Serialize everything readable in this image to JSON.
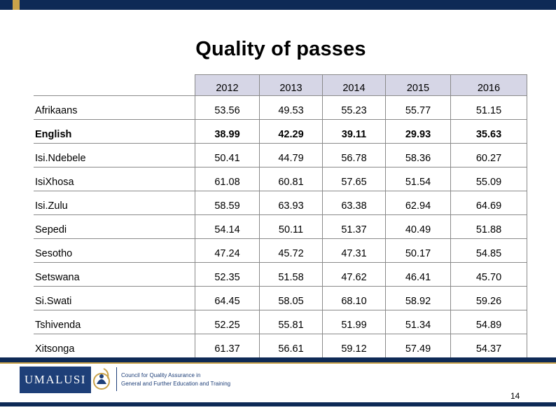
{
  "slide": {
    "title": "Quality of passes",
    "page_number": "14"
  },
  "table": {
    "columns": [
      "2012",
      "2013",
      "2014",
      "2015",
      "2016"
    ],
    "rows": [
      {
        "language": "Afrikaans",
        "values": [
          "53.56",
          "49.53",
          "55.23",
          "55.77",
          "51.15"
        ],
        "bold": false
      },
      {
        "language": "English",
        "values": [
          "38.99",
          "42.29",
          "39.11",
          "29.93",
          "35.63"
        ],
        "bold": true
      },
      {
        "language": "Isi.Ndebele",
        "values": [
          "50.41",
          "44.79",
          "56.78",
          "58.36",
          "60.27"
        ],
        "bold": false
      },
      {
        "language": "IsiXhosa",
        "values": [
          "61.08",
          "60.81",
          "57.65",
          "51.54",
          "55.09"
        ],
        "bold": false
      },
      {
        "language": "Isi.Zulu",
        "values": [
          "58.59",
          "63.93",
          "63.38",
          "62.94",
          "64.69"
        ],
        "bold": false
      },
      {
        "language": "Sepedi",
        "values": [
          "54.14",
          "50.11",
          "51.37",
          "40.49",
          "51.88"
        ],
        "bold": false
      },
      {
        "language": "Sesotho",
        "values": [
          "47.24",
          "45.72",
          "47.31",
          "50.17",
          "54.85"
        ],
        "bold": false
      },
      {
        "language": "Setswana",
        "values": [
          "52.35",
          "51.58",
          "47.62",
          "46.41",
          "45.70"
        ],
        "bold": false
      },
      {
        "language": "Si.Swati",
        "values": [
          "64.45",
          "58.05",
          "68.10",
          "58.92",
          "59.26"
        ],
        "bold": false
      },
      {
        "language": "Tshivenda",
        "values": [
          "52.25",
          "55.81",
          "51.99",
          "51.34",
          "54.89"
        ],
        "bold": false
      },
      {
        "language": "Xitsonga",
        "values": [
          "61.37",
          "56.61",
          "59.12",
          "57.49",
          "54.37"
        ],
        "bold": false
      }
    ]
  },
  "footer": {
    "logo_text": "UMALUSI",
    "org_line_1": "Council for Quality Assurance in",
    "org_line_2": "General and Further Education and Training",
    "emblem_icon": "umalusi-emblem-icon"
  },
  "colors": {
    "navy": "#0e2a56",
    "gold": "#c9a24a",
    "header_fill": "#d6d6e6",
    "logo_blue": "#1e3f78"
  }
}
